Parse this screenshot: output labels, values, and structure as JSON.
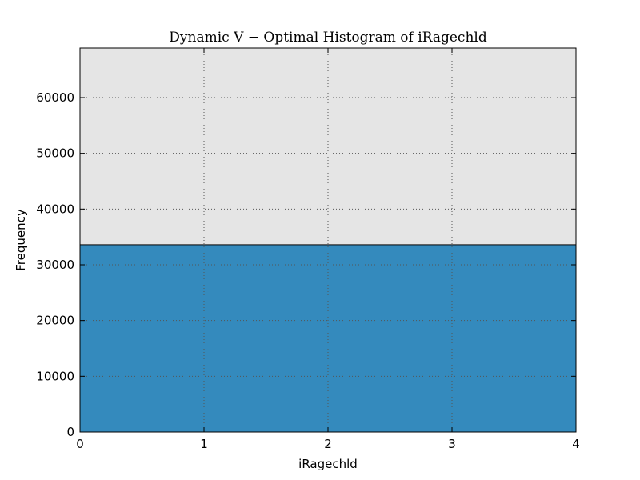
{
  "chart_data": {
    "type": "bar",
    "title": "Dynamic V − Optimal Histogram of iRagechld",
    "xlabel": "iRagechld",
    "ylabel": "Frequency",
    "xlim": [
      0,
      4
    ],
    "ylim": [
      0,
      68900
    ],
    "x_ticks": [
      0,
      1,
      2,
      3,
      4
    ],
    "y_ticks": [
      0,
      10000,
      20000,
      30000,
      40000,
      50000,
      60000
    ],
    "bins": [
      {
        "x_start": 0,
        "x_end": 4,
        "value": 33600
      }
    ],
    "grid": true,
    "legend": "none",
    "colors": {
      "bar": "#348abd",
      "plot_background": "#e5e5e5",
      "bar_edge": "#000000"
    }
  }
}
